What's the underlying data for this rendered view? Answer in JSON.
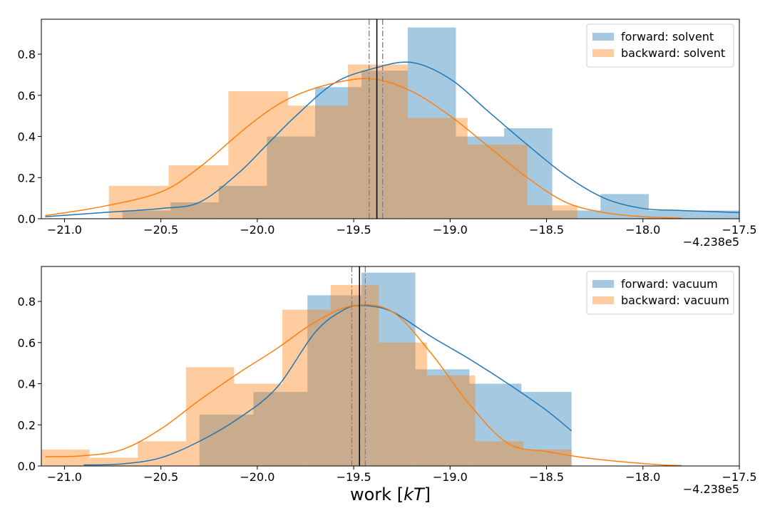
{
  "chart_data": [
    {
      "type": "histogram",
      "panel": "top",
      "xlim": [
        -21.12,
        -17.5
      ],
      "ylim": [
        0,
        0.97
      ],
      "x_ticks": [
        -21.0,
        -20.5,
        -20.0,
        -19.5,
        -19.0,
        -18.5,
        -18.0,
        -17.5
      ],
      "x_tick_labels": [
        "−21.0",
        "−20.5",
        "−20.0",
        "−19.5",
        "−19.0",
        "−18.5",
        "−18.0",
        "−17.5"
      ],
      "y_ticks": [
        0.0,
        0.2,
        0.4,
        0.6,
        0.8
      ],
      "y_tick_labels": [
        "0.0",
        "0.2",
        "0.4",
        "0.6",
        "0.8"
      ],
      "x_offset_label": "−4.238e5",
      "legend_placement": "upper right",
      "series": [
        {
          "name": "forward: solvent",
          "color": "#1f77b4",
          "bar_opacity": 0.4,
          "bins": [
            {
              "x0": -20.7,
              "x1": -20.45,
              "h": 0.04
            },
            {
              "x0": -20.45,
              "x1": -20.2,
              "h": 0.08
            },
            {
              "x0": -20.2,
              "x1": -19.95,
              "h": 0.16
            },
            {
              "x0": -19.95,
              "x1": -19.7,
              "h": 0.4
            },
            {
              "x0": -19.7,
              "x1": -19.46,
              "h": 0.64
            },
            {
              "x0": -19.46,
              "x1": -19.22,
              "h": 0.72
            },
            {
              "x0": -19.22,
              "x1": -18.97,
              "h": 0.93
            },
            {
              "x0": -18.97,
              "x1": -18.72,
              "h": 0.4
            },
            {
              "x0": -18.72,
              "x1": -18.47,
              "h": 0.44
            },
            {
              "x0": -18.47,
              "x1": -18.22,
              "h": 0.04
            },
            {
              "x0": -18.22,
              "x1": -17.97,
              "h": 0.12
            },
            {
              "x0": -17.97,
              "x1": -17.5,
              "h": 0.04
            }
          ],
          "kde_x": [
            -21.1,
            -20.8,
            -20.5,
            -20.3,
            -20.1,
            -19.95,
            -19.8,
            -19.6,
            -19.4,
            -19.2,
            -19.0,
            -18.8,
            -18.6,
            -18.4,
            -18.2,
            -18.0,
            -17.8,
            -17.5
          ],
          "kde_y": [
            0.01,
            0.03,
            0.05,
            0.08,
            0.22,
            0.36,
            0.5,
            0.66,
            0.73,
            0.76,
            0.68,
            0.52,
            0.36,
            0.21,
            0.1,
            0.05,
            0.04,
            0.03
          ]
        },
        {
          "name": "backward: solvent",
          "color": "#ff7f0e",
          "bar_opacity": 0.4,
          "bins": [
            {
              "x0": -20.77,
              "x1": -20.46,
              "h": 0.16
            },
            {
              "x0": -20.46,
              "x1": -20.15,
              "h": 0.26
            },
            {
              "x0": -20.15,
              "x1": -19.84,
              "h": 0.62
            },
            {
              "x0": -19.84,
              "x1": -19.53,
              "h": 0.55
            },
            {
              "x0": -19.53,
              "x1": -19.22,
              "h": 0.75
            },
            {
              "x0": -19.22,
              "x1": -18.91,
              "h": 0.49
            },
            {
              "x0": -18.91,
              "x1": -18.6,
              "h": 0.36
            },
            {
              "x0": -18.6,
              "x1": -18.34,
              "h": 0.065
            }
          ],
          "kde_x": [
            -21.1,
            -20.8,
            -20.5,
            -20.3,
            -20.1,
            -19.95,
            -19.8,
            -19.6,
            -19.4,
            -19.2,
            -19.0,
            -18.8,
            -18.6,
            -18.4,
            -18.2,
            -18.0,
            -17.8
          ],
          "kde_y": [
            0.015,
            0.06,
            0.13,
            0.25,
            0.41,
            0.52,
            0.6,
            0.66,
            0.68,
            0.62,
            0.5,
            0.35,
            0.2,
            0.08,
            0.03,
            0.01,
            0.003
          ]
        }
      ],
      "reference_lines": [
        {
          "x": -19.38,
          "style": "solid",
          "color": "#000000"
        },
        {
          "x": -19.42,
          "style": "dashdot",
          "color": "#808080"
        },
        {
          "x": -19.35,
          "style": "dashdot",
          "color": "#808080"
        }
      ]
    },
    {
      "type": "histogram",
      "panel": "bottom",
      "xlim": [
        -21.12,
        -17.5
      ],
      "ylim": [
        0,
        0.97
      ],
      "x_ticks": [
        -21.0,
        -20.5,
        -20.0,
        -19.5,
        -19.0,
        -18.5,
        -18.0,
        -17.5
      ],
      "x_tick_labels": [
        "−21.0",
        "−20.5",
        "−20.0",
        "−19.5",
        "−19.0",
        "−18.5",
        "−18.0",
        "−17.5"
      ],
      "y_ticks": [
        0.0,
        0.2,
        0.4,
        0.6,
        0.8
      ],
      "y_tick_labels": [
        "0.0",
        "0.2",
        "0.4",
        "0.6",
        "0.8"
      ],
      "x_offset_label": "−4.238e5",
      "xlabel": "work [kT]",
      "legend_placement": "upper right",
      "series": [
        {
          "name": "forward: vacuum",
          "color": "#1f77b4",
          "bar_opacity": 0.4,
          "bins": [
            {
              "x0": -20.3,
              "x1": -20.02,
              "h": 0.25
            },
            {
              "x0": -20.02,
              "x1": -19.74,
              "h": 0.36
            },
            {
              "x0": -19.74,
              "x1": -19.46,
              "h": 0.83
            },
            {
              "x0": -19.46,
              "x1": -19.18,
              "h": 0.94
            },
            {
              "x0": -19.18,
              "x1": -18.9,
              "h": 0.47
            },
            {
              "x0": -18.9,
              "x1": -18.63,
              "h": 0.4
            },
            {
              "x0": -18.63,
              "x1": -18.37,
              "h": 0.36
            }
          ],
          "kde_x": [
            -20.9,
            -20.7,
            -20.5,
            -20.3,
            -20.1,
            -19.9,
            -19.7,
            -19.55,
            -19.45,
            -19.3,
            -19.1,
            -18.9,
            -18.7,
            -18.5,
            -18.37
          ],
          "kde_y": [
            0.005,
            0.01,
            0.04,
            0.12,
            0.23,
            0.38,
            0.65,
            0.76,
            0.78,
            0.75,
            0.63,
            0.52,
            0.4,
            0.27,
            0.17
          ]
        },
        {
          "name": "backward: vacuum",
          "color": "#ff7f0e",
          "bar_opacity": 0.4,
          "bins": [
            {
              "x0": -21.12,
              "x1": -20.87,
              "h": 0.08
            },
            {
              "x0": -20.87,
              "x1": -20.62,
              "h": 0.04
            },
            {
              "x0": -20.62,
              "x1": -20.37,
              "h": 0.12
            },
            {
              "x0": -20.37,
              "x1": -20.12,
              "h": 0.48
            },
            {
              "x0": -20.12,
              "x1": -19.87,
              "h": 0.4
            },
            {
              "x0": -19.87,
              "x1": -19.62,
              "h": 0.76
            },
            {
              "x0": -19.62,
              "x1": -19.37,
              "h": 0.88
            },
            {
              "x0": -19.37,
              "x1": -19.12,
              "h": 0.6
            },
            {
              "x0": -19.12,
              "x1": -18.87,
              "h": 0.44
            },
            {
              "x0": -18.87,
              "x1": -18.62,
              "h": 0.12
            },
            {
              "x0": -18.62,
              "x1": -18.37,
              "h": 0.08
            }
          ],
          "kde_x": [
            -21.1,
            -20.9,
            -20.7,
            -20.5,
            -20.3,
            -20.1,
            -19.9,
            -19.7,
            -19.5,
            -19.3,
            -19.1,
            -18.9,
            -18.7,
            -18.5,
            -18.3,
            -18.1,
            -17.9,
            -17.8
          ],
          "kde_y": [
            0.045,
            0.05,
            0.08,
            0.18,
            0.32,
            0.45,
            0.57,
            0.7,
            0.78,
            0.75,
            0.55,
            0.3,
            0.11,
            0.07,
            0.04,
            0.02,
            0.005,
            0.002
          ]
        }
      ],
      "reference_lines": [
        {
          "x": -19.47,
          "style": "solid",
          "color": "#000000"
        },
        {
          "x": -19.51,
          "style": "dashdot",
          "color": "#808080"
        },
        {
          "x": -19.44,
          "style": "dashdot",
          "color": "#808080"
        }
      ]
    }
  ]
}
